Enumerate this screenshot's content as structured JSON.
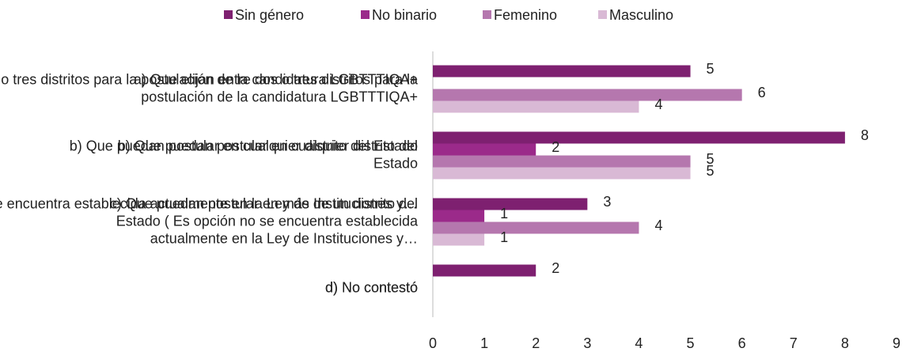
{
  "chart_data": {
    "type": "barh",
    "categories": [
      "a) Que elijan entre dos o tres distritos para la\npostulación de la candidatura LGBTTTIQA+",
      "b) Que puedan postular en cualquier distrito del\nEstado",
      "c) Que puedan postular en más de un distrito del\nEstado (  Es opción no se encuentra establecida\nactualmente en la Ley de Instituciones y…",
      "d) No contestó"
    ],
    "series": [
      {
        "name": "Sin género",
        "color": "#7e2070",
        "values": [
          5,
          8,
          3,
          2
        ]
      },
      {
        "name": "No binario",
        "color": "#9b2a8a",
        "values": [
          null,
          2,
          1,
          null
        ]
      },
      {
        "name": "Femenino",
        "color": "#b577ae",
        "values": [
          6,
          5,
          4,
          null
        ]
      },
      {
        "name": "Masculino",
        "color": "#d9b9d5",
        "values": [
          4,
          5,
          1,
          null
        ]
      }
    ],
    "xlim": [
      0,
      9
    ],
    "xticks": [
      0,
      1,
      2,
      3,
      4,
      5,
      6,
      7,
      8,
      9
    ],
    "legend": "top"
  }
}
